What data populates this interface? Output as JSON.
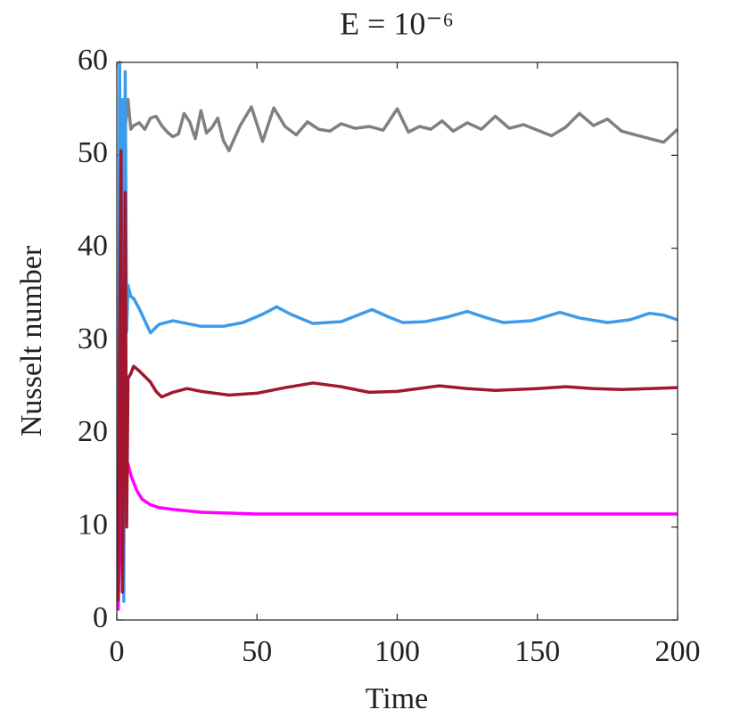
{
  "chart_data": {
    "type": "line",
    "title": "E = 10⁻⁶",
    "xlabel": "Time",
    "ylabel": "Nusselt number",
    "xlim": [
      0,
      200
    ],
    "xticks": [
      0,
      50,
      100,
      150,
      200
    ],
    "ylim": [
      0,
      60
    ],
    "yticks": [
      0,
      10,
      20,
      30,
      40,
      50,
      60
    ],
    "series": [
      {
        "color": "#808080",
        "x": [
          1,
          2,
          3,
          4,
          5,
          6,
          8,
          10,
          12,
          14,
          16,
          18,
          20,
          22,
          24,
          26,
          28,
          30,
          32,
          34,
          36,
          38,
          40,
          44,
          48,
          52,
          56,
          60,
          64,
          68,
          72,
          76,
          80,
          85,
          90,
          95,
          100,
          104,
          108,
          112,
          116,
          120,
          125,
          130,
          135,
          140,
          145,
          150,
          155,
          160,
          165,
          170,
          175,
          180,
          185,
          190,
          195,
          200
        ],
        "values": [
          50,
          55.5,
          53,
          56,
          52.8,
          53.2,
          53.5,
          52.8,
          54,
          54.2,
          53.2,
          52.5,
          52,
          52.3,
          54.5,
          53.6,
          51.8,
          54.8,
          52.4,
          53,
          54,
          51.6,
          50.5,
          53.2,
          55.2,
          51.5,
          55.1,
          53.1,
          52.2,
          53.6,
          52.8,
          52.6,
          53.4,
          52.9,
          53.1,
          52.7,
          55,
          52.5,
          53.1,
          52.8,
          53.7,
          52.6,
          53.5,
          52.8,
          54.2,
          52.9,
          53.3,
          52.7,
          52.1,
          53,
          54.5,
          53.2,
          53.9,
          52.6,
          52.2,
          51.8,
          51.4,
          52.8
        ]
      },
      {
        "color": "#3d9be9",
        "x": [
          0.5,
          1,
          1.5,
          2,
          2.5,
          3,
          3.5,
          4,
          5,
          6,
          8,
          10,
          12,
          15,
          20,
          25,
          30,
          38,
          45,
          52,
          57,
          62,
          70,
          80,
          91,
          97,
          102,
          110,
          118,
          125,
          132,
          138,
          148,
          158,
          165,
          175,
          183,
          190,
          195,
          200
        ],
        "values": [
          3,
          60,
          20,
          56,
          2,
          59,
          31,
          36,
          34.8,
          34.6,
          33.5,
          32.2,
          30.9,
          31.8,
          32.2,
          31.9,
          31.6,
          31.6,
          32,
          32.9,
          33.7,
          32.9,
          31.9,
          32.1,
          33.4,
          32.6,
          32,
          32.1,
          32.6,
          33.2,
          32.5,
          32,
          32.2,
          33.1,
          32.5,
          32,
          32.3,
          33,
          32.8,
          32.3
        ]
      },
      {
        "color": "#ff00ff",
        "x": [
          0.5,
          1,
          1.5,
          2,
          2.5,
          3,
          4,
          5,
          7,
          9,
          12,
          15,
          20,
          30,
          40,
          50,
          60,
          80,
          100,
          120,
          140,
          160,
          180,
          200
        ],
        "values": [
          1,
          8,
          14,
          17,
          17.8,
          17.6,
          16.8,
          15.6,
          14,
          13,
          12.4,
          12.1,
          11.9,
          11.6,
          11.5,
          11.4,
          11.4,
          11.4,
          11.4,
          11.4,
          11.4,
          11.4,
          11.4,
          11.4
        ]
      },
      {
        "color": "#a0172f",
        "x": [
          0.5,
          1,
          1.5,
          2,
          2.5,
          3,
          3.5,
          4,
          5,
          6,
          8,
          10,
          12,
          14,
          16,
          20,
          25,
          30,
          40,
          50,
          60,
          70,
          80,
          90,
          100,
          115,
          125,
          135,
          150,
          160,
          170,
          180,
          190,
          200
        ],
        "values": [
          2,
          30,
          50.5,
          3,
          20,
          46,
          10,
          26,
          26.5,
          27.3,
          26.8,
          26.2,
          25.6,
          24.6,
          24,
          24.5,
          24.9,
          24.6,
          24.2,
          24.4,
          25,
          25.5,
          25.1,
          24.5,
          24.6,
          25.2,
          24.9,
          24.7,
          24.9,
          25.1,
          24.9,
          24.8,
          24.9,
          25
        ]
      }
    ]
  }
}
